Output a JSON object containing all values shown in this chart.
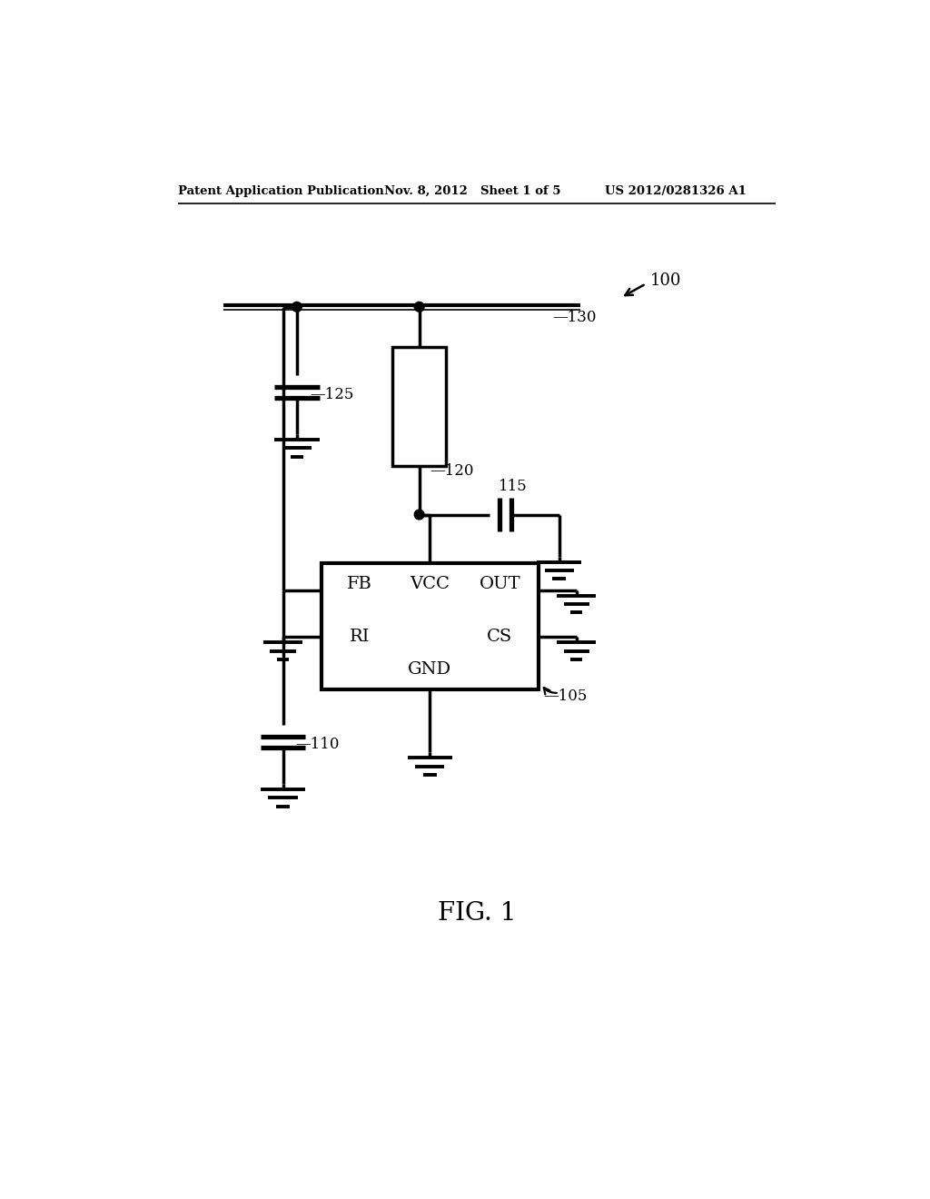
{
  "bg_color": "#ffffff",
  "line_color": "#000000",
  "lw_main": 2.5,
  "lw_thin": 1.5,
  "lw_thick": 3.5,
  "header_text": "Patent Application Publication",
  "header_date": "Nov. 8, 2012",
  "header_sheet": "Sheet 1 of 5",
  "header_patent": "US 2012/0281326 A1",
  "fig_label": "FIG. 1",
  "ref_100": "100",
  "ref_130": "—130",
  "ref_125": "—125",
  "ref_120": "—120",
  "ref_115": "115",
  "ref_110": "—110",
  "ref_105": "—105"
}
